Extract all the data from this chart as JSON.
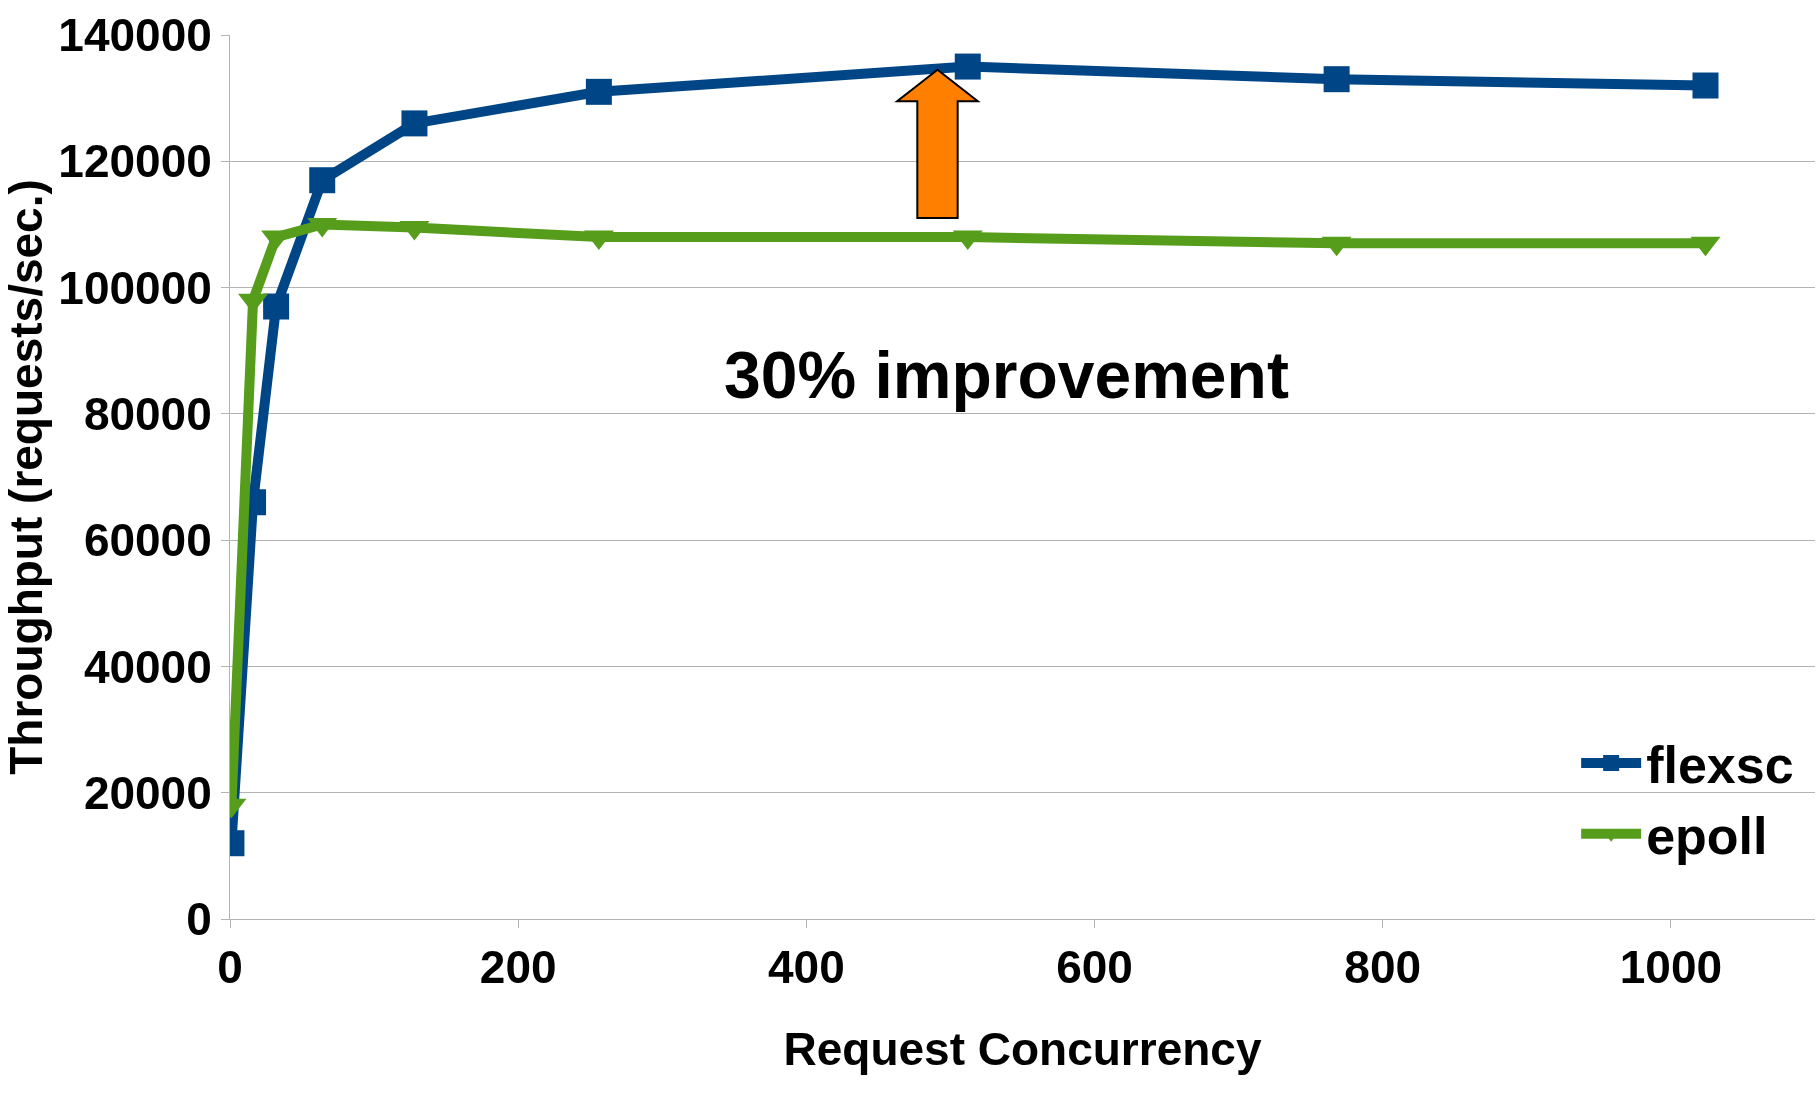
{
  "chart_data": {
    "type": "line",
    "xlabel": "Request Concurrency",
    "ylabel": "Throughput (requests/sec.)",
    "x": [
      1,
      16,
      32,
      64,
      128,
      256,
      512,
      768,
      1024
    ],
    "series": [
      {
        "name": "flexsc",
        "color": "#004586",
        "marker": "square",
        "values": [
          12000,
          66000,
          97000,
          117000,
          126000,
          131000,
          135000,
          133000,
          132000
        ]
      },
      {
        "name": "epoll",
        "color": "#579d1c",
        "marker": "triangle",
        "values": [
          18000,
          98000,
          108000,
          110000,
          109500,
          108000,
          108000,
          107000,
          107000
        ]
      }
    ],
    "xlim": [
      0,
      1100
    ],
    "xticks": [
      0,
      200,
      400,
      600,
      800,
      1000
    ],
    "ylim": [
      0,
      140000
    ],
    "yticks": [
      0,
      20000,
      40000,
      60000,
      80000,
      100000,
      120000,
      140000
    ],
    "grid": "y",
    "legend": "bottom right",
    "annotations": [
      "30% improvement"
    ]
  }
}
